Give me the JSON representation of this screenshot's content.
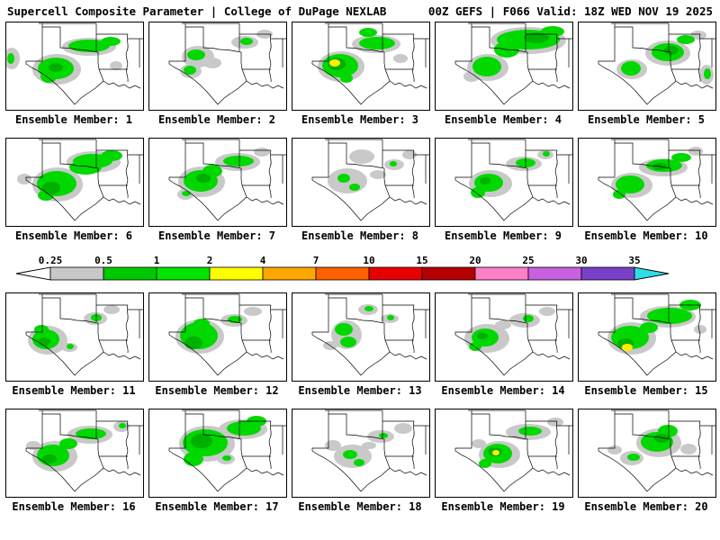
{
  "header": {
    "left": "Supercell Composite Parameter | College of DuPage NEXLAB",
    "right": "00Z GEFS | F066 Valid: 18Z WED NOV 19 2025"
  },
  "colorbar": {
    "tick_labels": [
      "0.25",
      "0.5",
      "1",
      "2",
      "4",
      "7",
      "10",
      "15",
      "20",
      "25",
      "30",
      "35"
    ],
    "segment_colors": [
      "#c8c8c8",
      "#00c800",
      "#00e400",
      "#ffff00",
      "#ffa800",
      "#ff6000",
      "#e80000",
      "#b40000",
      "#ff80c8",
      "#c860e0",
      "#7840c8"
    ],
    "left_arrow_color": "#ffffff",
    "right_arrow_color": "#30dce8"
  },
  "blob_colors": {
    "gray": "#c9c9c9",
    "green": "#00d800",
    "dgreen": "#00b000",
    "yellow": "#ffee00"
  },
  "panels": [
    {
      "label": "Ensemble Member: 1",
      "blobs": [
        [
          "gray",
          6,
          40,
          9,
          12
        ],
        [
          "green",
          5,
          40,
          4,
          6
        ],
        [
          "gray",
          56,
          52,
          27,
          17
        ],
        [
          "green",
          55,
          51,
          20,
          12
        ],
        [
          "dgreen",
          55,
          50,
          8,
          5
        ],
        [
          "green",
          47,
          60,
          9,
          7
        ],
        [
          "gray",
          92,
          27,
          30,
          10
        ],
        [
          "green",
          92,
          26,
          23,
          7
        ],
        [
          "green",
          116,
          21,
          11,
          5
        ],
        [
          "gray",
          122,
          48,
          7,
          5
        ]
      ]
    },
    {
      "label": "Ensemble Member: 2",
      "blobs": [
        [
          "gray",
          54,
          38,
          18,
          12
        ],
        [
          "green",
          52,
          36,
          10,
          6
        ],
        [
          "gray",
          46,
          54,
          12,
          8
        ],
        [
          "green",
          45,
          53,
          7,
          5
        ],
        [
          "gray",
          106,
          22,
          15,
          7
        ],
        [
          "green",
          108,
          21,
          7,
          4
        ],
        [
          "gray",
          128,
          13,
          9,
          5
        ],
        [
          "gray",
          70,
          45,
          10,
          6
        ]
      ]
    },
    {
      "label": "Ensemble Member: 3",
      "blobs": [
        [
          "gray",
          54,
          49,
          26,
          17
        ],
        [
          "green",
          53,
          48,
          20,
          13
        ],
        [
          "dgreen",
          49,
          46,
          10,
          7
        ],
        [
          "yellow",
          47,
          45,
          6,
          4
        ],
        [
          "gray",
          93,
          24,
          27,
          10
        ],
        [
          "green",
          94,
          23,
          20,
          7
        ],
        [
          "green",
          84,
          11,
          10,
          5
        ],
        [
          "gray",
          120,
          40,
          8,
          5
        ],
        [
          "green",
          60,
          62,
          7,
          5
        ]
      ]
    },
    {
      "label": "Ensemble Member: 4",
      "blobs": [
        [
          "gray",
          103,
          20,
          42,
          15
        ],
        [
          "green",
          103,
          19,
          35,
          11
        ],
        [
          "dgreen",
          112,
          17,
          14,
          6
        ],
        [
          "green",
          79,
          30,
          14,
          9
        ],
        [
          "gray",
          58,
          50,
          23,
          15
        ],
        [
          "green",
          57,
          49,
          16,
          11
        ],
        [
          "green",
          130,
          10,
          13,
          6
        ],
        [
          "gray",
          40,
          60,
          9,
          6
        ]
      ]
    },
    {
      "label": "Ensemble Member: 5",
      "blobs": [
        [
          "gray",
          99,
          34,
          25,
          14
        ],
        [
          "green",
          99,
          33,
          18,
          10
        ],
        [
          "dgreen",
          103,
          31,
          8,
          5
        ],
        [
          "gray",
          59,
          52,
          17,
          11
        ],
        [
          "green",
          58,
          51,
          11,
          8
        ],
        [
          "green",
          119,
          19,
          10,
          5
        ],
        [
          "gray",
          133,
          14,
          9,
          5
        ],
        [
          "gray",
          142,
          58,
          8,
          11
        ],
        [
          "green",
          143,
          57,
          4,
          6
        ]
      ]
    },
    {
      "label": "Ensemble Member: 6",
      "blobs": [
        [
          "gray",
          57,
          51,
          28,
          19
        ],
        [
          "green",
          56,
          50,
          22,
          14
        ],
        [
          "dgreen",
          50,
          55,
          10,
          7
        ],
        [
          "gray",
          97,
          26,
          30,
          12
        ],
        [
          "green",
          96,
          25,
          22,
          8
        ],
        [
          "green",
          88,
          32,
          18,
          8
        ],
        [
          "green",
          117,
          19,
          12,
          6
        ],
        [
          "green",
          44,
          63,
          9,
          6
        ],
        [
          "gray",
          20,
          45,
          8,
          6
        ]
      ]
    },
    {
      "label": "Ensemble Member: 7",
      "blobs": [
        [
          "gray",
          58,
          48,
          26,
          17
        ],
        [
          "green",
          57,
          47,
          19,
          12
        ],
        [
          "dgreen",
          60,
          44,
          8,
          5
        ],
        [
          "gray",
          98,
          26,
          25,
          10
        ],
        [
          "green",
          99,
          25,
          17,
          6
        ],
        [
          "green",
          70,
          36,
          11,
          7
        ],
        [
          "gray",
          125,
          15,
          9,
          5
        ],
        [
          "gray",
          40,
          62,
          9,
          6
        ],
        [
          "green",
          41,
          61,
          5,
          3
        ]
      ]
    },
    {
      "label": "Ensemble Member: 8",
      "blobs": [
        [
          "gray",
          61,
          47,
          22,
          14
        ],
        [
          "green",
          57,
          44,
          7,
          5
        ],
        [
          "green",
          69,
          54,
          6,
          4
        ],
        [
          "gray",
          77,
          20,
          14,
          8
        ],
        [
          "gray",
          113,
          29,
          11,
          6
        ],
        [
          "green",
          112,
          28,
          4,
          3
        ],
        [
          "gray",
          95,
          40,
          9,
          5
        ],
        [
          "gray",
          130,
          18,
          8,
          5
        ]
      ]
    },
    {
      "label": "Ensemble Member: 9",
      "blobs": [
        [
          "gray",
          61,
          50,
          24,
          15
        ],
        [
          "green",
          59,
          49,
          16,
          10
        ],
        [
          "dgreen",
          55,
          47,
          6,
          4
        ],
        [
          "gray",
          98,
          28,
          20,
          8
        ],
        [
          "green",
          100,
          27,
          11,
          5
        ],
        [
          "green",
          47,
          60,
          8,
          6
        ],
        [
          "gray",
          122,
          18,
          9,
          5
        ],
        [
          "green",
          123,
          17,
          4,
          3
        ]
      ]
    },
    {
      "label": "Ensemble Member: 10",
      "blobs": [
        [
          "gray",
          59,
          52,
          23,
          14
        ],
        [
          "green",
          57,
          51,
          16,
          10
        ],
        [
          "gray",
          94,
          32,
          27,
          10
        ],
        [
          "green",
          95,
          30,
          20,
          7
        ],
        [
          "dgreen",
          90,
          31,
          8,
          4
        ],
        [
          "green",
          114,
          21,
          11,
          5
        ],
        [
          "gray",
          130,
          14,
          8,
          5
        ],
        [
          "green",
          45,
          62,
          7,
          5
        ]
      ]
    },
    {
      "label": "Ensemble Member: 11",
      "blobs": [
        [
          "gray",
          46,
          52,
          22,
          16
        ],
        [
          "green",
          44,
          51,
          15,
          11
        ],
        [
          "dgreen",
          42,
          54,
          7,
          5
        ],
        [
          "green",
          39,
          40,
          8,
          5
        ],
        [
          "gray",
          99,
          28,
          13,
          7
        ],
        [
          "green",
          100,
          27,
          6,
          4
        ],
        [
          "gray",
          117,
          18,
          9,
          5
        ],
        [
          "gray",
          70,
          60,
          9,
          5
        ],
        [
          "green",
          71,
          59,
          4,
          3
        ]
      ]
    },
    {
      "label": "Ensemble Member: 12",
      "blobs": [
        [
          "gray",
          56,
          48,
          27,
          19
        ],
        [
          "green",
          55,
          47,
          21,
          15
        ],
        [
          "dgreen",
          49,
          55,
          10,
          7
        ],
        [
          "gray",
          94,
          30,
          15,
          7
        ],
        [
          "green",
          95,
          29,
          8,
          4
        ],
        [
          "gray",
          115,
          20,
          10,
          5
        ],
        [
          "green",
          58,
          33,
          9,
          5
        ]
      ]
    },
    {
      "label": "Ensemble Member: 13",
      "blobs": [
        [
          "gray",
          60,
          46,
          17,
          16
        ],
        [
          "green",
          57,
          40,
          10,
          7
        ],
        [
          "green",
          62,
          54,
          9,
          6
        ],
        [
          "gray",
          84,
          18,
          11,
          6
        ],
        [
          "green",
          85,
          17,
          5,
          3
        ],
        [
          "gray",
          108,
          28,
          10,
          5
        ],
        [
          "green",
          109,
          27,
          4,
          3
        ],
        [
          "gray",
          42,
          58,
          8,
          5
        ]
      ]
    },
    {
      "label": "Ensemble Member: 14",
      "blobs": [
        [
          "gray",
          57,
          50,
          25,
          16
        ],
        [
          "green",
          55,
          49,
          15,
          10
        ],
        [
          "dgreen",
          52,
          47,
          6,
          4
        ],
        [
          "gray",
          99,
          30,
          17,
          8
        ],
        [
          "green",
          103,
          28,
          6,
          4
        ],
        [
          "green",
          44,
          59,
          7,
          5
        ],
        [
          "gray",
          124,
          20,
          9,
          5
        ],
        [
          "gray",
          75,
          35,
          9,
          5
        ]
      ]
    },
    {
      "label": "Ensemble Member: 15",
      "blobs": [
        [
          "gray",
          59,
          50,
          27,
          18
        ],
        [
          "green",
          57,
          49,
          21,
          13
        ],
        [
          "dgreen",
          52,
          56,
          9,
          6
        ],
        [
          "yellow",
          54,
          60,
          6,
          4
        ],
        [
          "gray",
          99,
          26,
          31,
          12
        ],
        [
          "green",
          101,
          25,
          25,
          9
        ],
        [
          "green",
          124,
          13,
          12,
          6
        ],
        [
          "gray",
          135,
          40,
          7,
          5
        ],
        [
          "green",
          78,
          38,
          10,
          6
        ]
      ]
    },
    {
      "label": "Ensemble Member: 16",
      "blobs": [
        [
          "gray",
          54,
          52,
          25,
          17
        ],
        [
          "green",
          52,
          51,
          18,
          12
        ],
        [
          "dgreen",
          48,
          55,
          8,
          5
        ],
        [
          "gray",
          93,
          28,
          25,
          10
        ],
        [
          "green",
          94,
          27,
          17,
          6
        ],
        [
          "green",
          69,
          38,
          10,
          6
        ],
        [
          "gray",
          128,
          19,
          9,
          6
        ],
        [
          "green",
          129,
          18,
          4,
          3
        ],
        [
          "gray",
          30,
          40,
          8,
          5
        ]
      ]
    },
    {
      "label": "Ensemble Member: 17",
      "blobs": [
        [
          "gray",
          64,
          38,
          31,
          20
        ],
        [
          "green",
          62,
          37,
          25,
          15
        ],
        [
          "dgreen",
          58,
          35,
          12,
          8
        ],
        [
          "gray",
          104,
          22,
          27,
          11
        ],
        [
          "green",
          105,
          21,
          19,
          8
        ],
        [
          "green",
          49,
          55,
          11,
          8
        ],
        [
          "green",
          119,
          13,
          11,
          6
        ],
        [
          "gray",
          85,
          55,
          10,
          6
        ],
        [
          "green",
          86,
          54,
          5,
          3
        ]
      ]
    },
    {
      "label": "Ensemble Member: 18",
      "blobs": [
        [
          "gray",
          67,
          52,
          21,
          13
        ],
        [
          "green",
          64,
          50,
          8,
          5
        ],
        [
          "green",
          74,
          59,
          6,
          4
        ],
        [
          "gray",
          98,
          30,
          15,
          7
        ],
        [
          "green",
          101,
          29,
          5,
          3
        ],
        [
          "gray",
          123,
          21,
          10,
          6
        ],
        [
          "gray",
          45,
          40,
          9,
          6
        ],
        [
          "gray",
          85,
          40,
          8,
          4
        ]
      ]
    },
    {
      "label": "Ensemble Member: 19",
      "blobs": [
        [
          "gray",
          71,
          50,
          23,
          15
        ],
        [
          "green",
          69,
          49,
          16,
          11
        ],
        [
          "dgreen",
          66,
          47,
          8,
          5
        ],
        [
          "yellow",
          67,
          48,
          4,
          3
        ],
        [
          "gray",
          103,
          25,
          25,
          9
        ],
        [
          "green",
          105,
          24,
          13,
          5
        ],
        [
          "gray",
          133,
          14,
          9,
          5
        ],
        [
          "green",
          55,
          60,
          7,
          5
        ],
        [
          "gray",
          48,
          38,
          8,
          5
        ]
      ]
    },
    {
      "label": "Ensemble Member: 20",
      "blobs": [
        [
          "gray",
          89,
          37,
          25,
          16
        ],
        [
          "green",
          87,
          36,
          18,
          11
        ],
        [
          "dgreen",
          92,
          32,
          8,
          5
        ],
        [
          "green",
          99,
          24,
          11,
          7
        ],
        [
          "gray",
          59,
          54,
          13,
          8
        ],
        [
          "green",
          61,
          53,
          7,
          4
        ],
        [
          "gray",
          122,
          44,
          9,
          6
        ],
        [
          "gray",
          40,
          45,
          8,
          5
        ]
      ]
    }
  ]
}
